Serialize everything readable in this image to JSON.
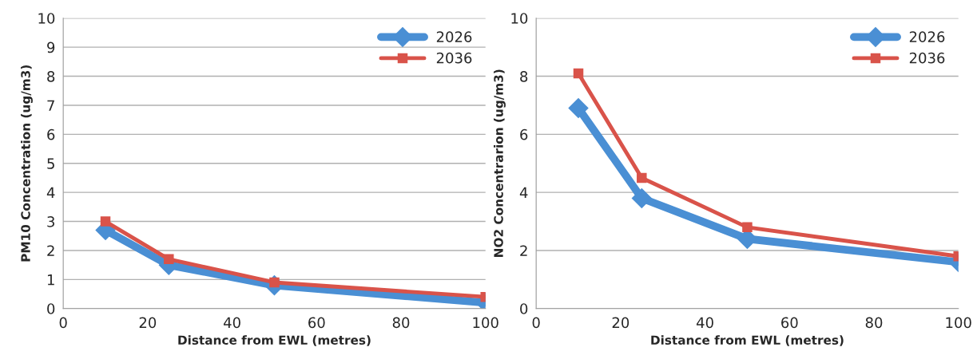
{
  "chart_data": [
    {
      "type": "line",
      "x": [
        10,
        25,
        50,
        100
      ],
      "xlabel": "Distance from EWL (metres)",
      "ylabel": "PM10 Concentration (ug/m3)",
      "xlim": [
        0,
        100
      ],
      "xticks": [
        0,
        20,
        40,
        60,
        80,
        100
      ],
      "ylim": [
        0,
        10
      ],
      "yticks": [
        0,
        1,
        2,
        3,
        4,
        5,
        6,
        7,
        8,
        9,
        10
      ],
      "grid": "y",
      "legend": "top right",
      "series": [
        {
          "name": "2026",
          "color": "#4a8fd4",
          "marker": "diamond",
          "values": [
            2.7,
            1.5,
            0.8,
            0.2
          ]
        },
        {
          "name": "2036",
          "color": "#d9534a",
          "marker": "square",
          "values": [
            3.0,
            1.7,
            0.9,
            0.4
          ]
        }
      ]
    },
    {
      "type": "line",
      "x": [
        10,
        25,
        50,
        100
      ],
      "xlabel": "Distance from EWL (metres)",
      "ylabel": "NO2 Concentrarion (ug/m3)",
      "xlim": [
        0,
        100
      ],
      "xticks": [
        0,
        20,
        40,
        60,
        80,
        100
      ],
      "ylim": [
        0,
        10
      ],
      "yticks": [
        0,
        2,
        4,
        6,
        8,
        10
      ],
      "grid": "y",
      "legend": "top right",
      "series": [
        {
          "name": "2026",
          "color": "#4a8fd4",
          "marker": "diamond",
          "values": [
            6.9,
            3.8,
            2.4,
            1.6
          ]
        },
        {
          "name": "2036",
          "color": "#d9534a",
          "marker": "square",
          "values": [
            8.1,
            4.5,
            2.8,
            1.8
          ]
        }
      ]
    }
  ]
}
